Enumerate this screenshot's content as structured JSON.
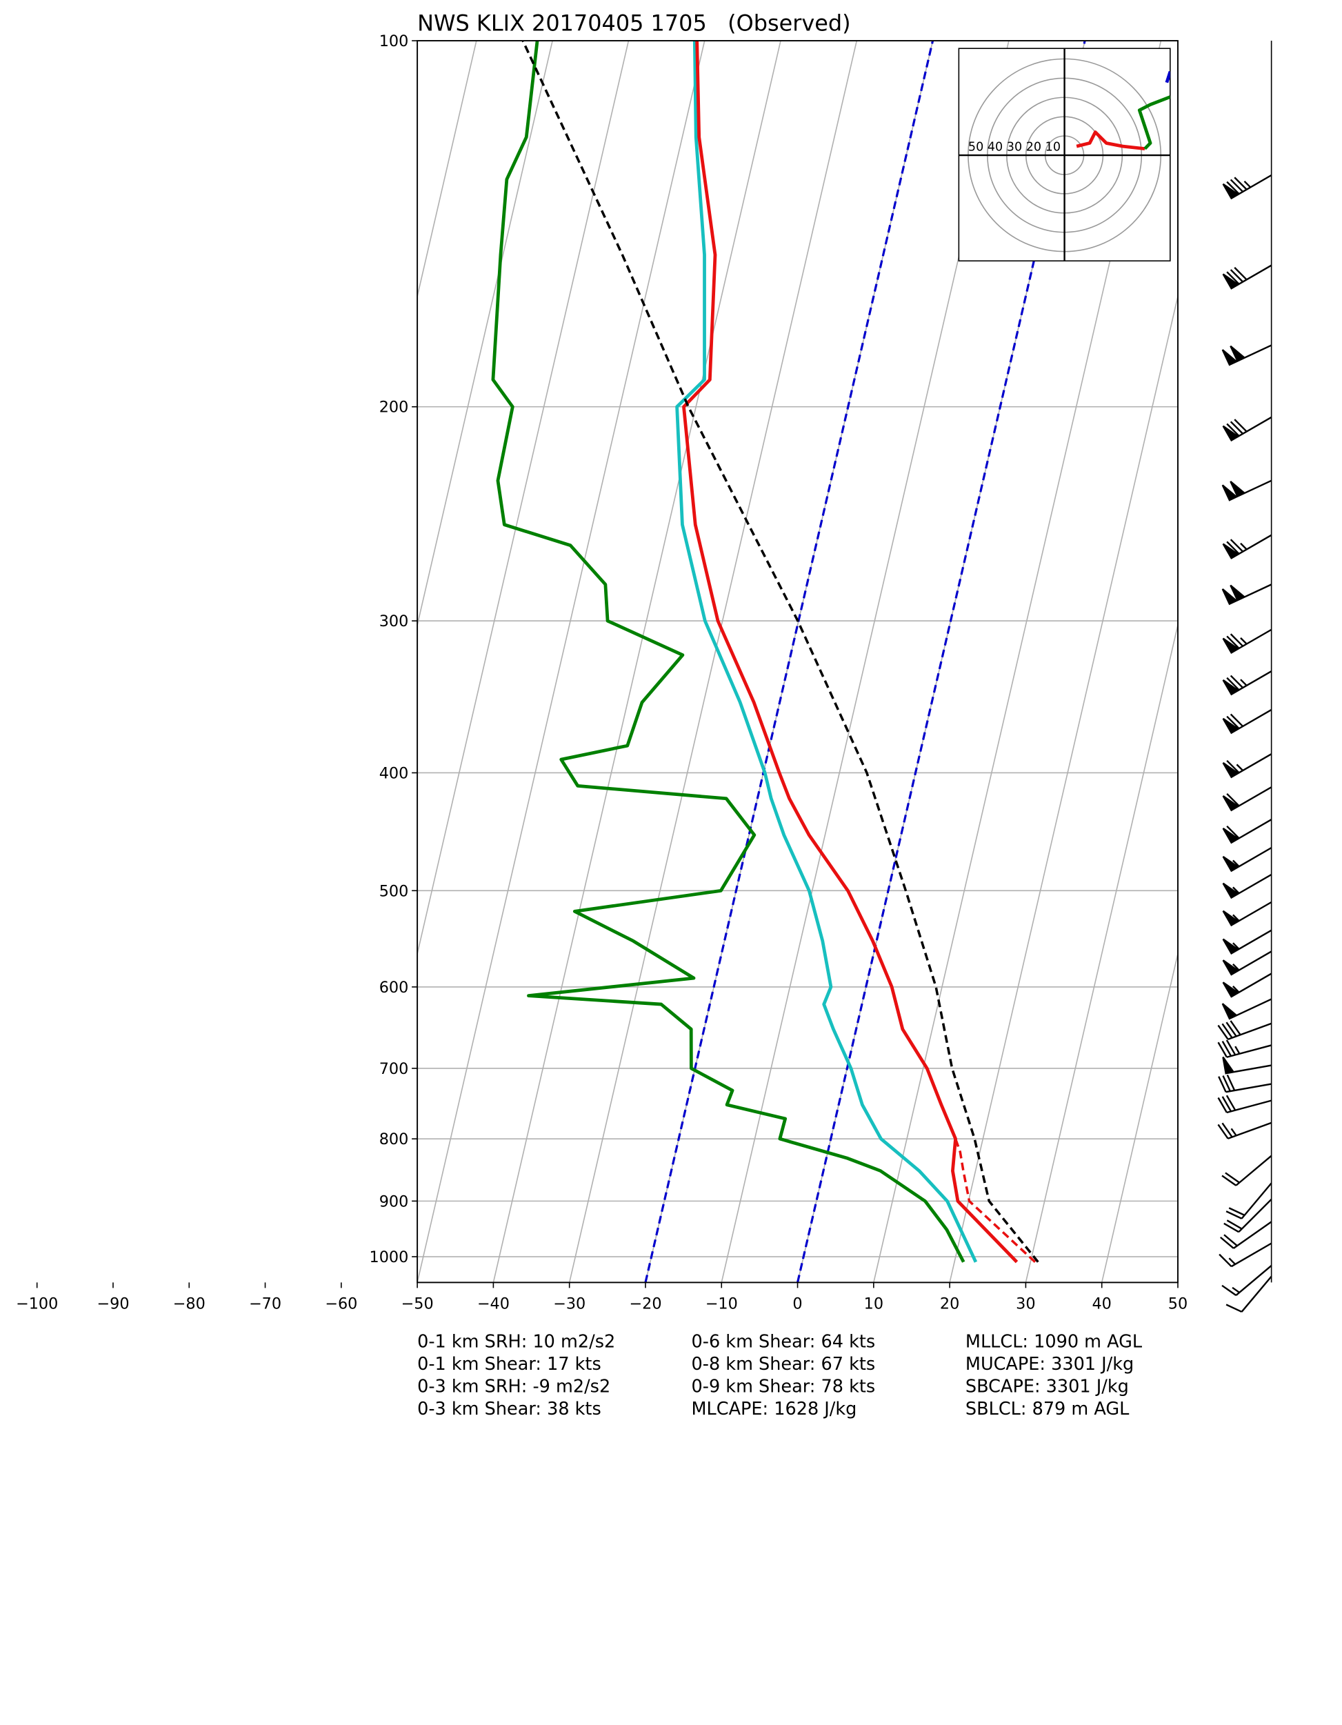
{
  "chart_data": {
    "type": "skewt",
    "title": "NWS KLIX 20170405 1705   (Observed)",
    "xlim": [
      -50,
      50
    ],
    "xticks": [
      {
        "value": -100,
        "label": "−100"
      },
      {
        "value": -90,
        "label": "−90"
      },
      {
        "value": -80,
        "label": "−80"
      },
      {
        "value": -70,
        "label": "−70"
      },
      {
        "value": -60,
        "label": "−60"
      },
      {
        "value": -50,
        "label": "−50"
      },
      {
        "value": -40,
        "label": "−40"
      },
      {
        "value": -30,
        "label": "−30"
      },
      {
        "value": -20,
        "label": "−20"
      },
      {
        "value": -10,
        "label": "−10"
      },
      0,
      10,
      20,
      30,
      40,
      50
    ],
    "ylim": [
      1050,
      100
    ],
    "yticks": [
      100,
      200,
      300,
      400,
      500,
      600,
      700,
      800,
      900,
      1000
    ],
    "log_y": true,
    "grid": true,
    "highlight_isotherms": {
      "values": [
        -20,
        0
      ],
      "color": "#0000cc"
    },
    "series": [
      {
        "color": "#008000",
        "style": "solid",
        "pressure": [
          1010,
          950,
          900,
          850,
          830,
          800,
          770,
          750,
          730,
          700,
          650,
          620,
          610,
          590,
          550,
          520,
          500,
          450,
          420,
          410,
          390,
          380,
          350,
          320,
          300,
          280,
          260,
          250,
          230,
          200,
          190,
          150,
          130,
          120,
          100
        ],
        "values": [
          21.2,
          18.0,
          14.3,
          7.5,
          2.8,
          -6.7,
          -6.6,
          -14.7,
          -14.4,
          -20.5,
          -21.7,
          -26.4,
          -44.1,
          -22.9,
          -32.0,
          -40.6,
          -22.0,
          -19.3,
          -24.1,
          -44.0,
          -47.0,
          -38.7,
          -38.1,
          -34.2,
          -45.1,
          -46.5,
          -52.3,
          -61.6,
          -63.8,
          -64.1,
          -67.5,
          -70.3,
          -71.8,
          -70.5,
          -72.0
        ]
      },
      {
        "color": "#17bfbf",
        "style": "solid",
        "pressure": [
          1010,
          900,
          850,
          800,
          750,
          700,
          650,
          620,
          600,
          550,
          500,
          450,
          420,
          400,
          350,
          300,
          250,
          200,
          190,
          150,
          120,
          100
        ],
        "values": [
          22.8,
          17.2,
          12.6,
          6.6,
          3.1,
          0.5,
          -3.0,
          -5.0,
          -4.6,
          -7.1,
          -10.4,
          -15.4,
          -18.2,
          -19.8,
          -25.2,
          -32.3,
          -38.2,
          -42.5,
          -39.7,
          -43.5,
          -48.2,
          -51.3
        ]
      },
      {
        "color": "#e81010",
        "style": "solid",
        "pressure": [
          1010,
          900,
          850,
          800,
          750,
          700,
          650,
          600,
          550,
          500,
          450,
          420,
          400,
          350,
          300,
          250,
          200,
          190,
          150,
          120,
          100
        ],
        "values": [
          28.2,
          18.6,
          17.0,
          16.4,
          13.5,
          10.5,
          6.1,
          3.4,
          -0.5,
          -5.3,
          -12.1,
          -15.8,
          -17.9,
          -23.4,
          -30.6,
          -36.5,
          -41.6,
          -39.0,
          -42.1,
          -47.8,
          -51.0
        ]
      },
      {
        "color": "#e81010",
        "style": "dashed",
        "pressure": [
          1010,
          900,
          850,
          820,
          800
        ],
        "values": [
          30.6,
          20.1,
          18.4,
          17.4,
          16.4
        ]
      },
      {
        "color": "#000000",
        "style": "dashed",
        "pressure": [
          1010,
          900,
          800,
          700,
          600,
          500,
          400,
          300,
          250,
          200,
          150,
          100
        ],
        "values": [
          31.0,
          22.7,
          18.9,
          13.8,
          9.2,
          2.3,
          -6.4,
          -20.1,
          -29.5,
          -41.0,
          -54.3,
          -73.9
        ]
      }
    ],
    "winds": {
      "pressure": [
        129,
        153,
        178,
        204,
        230,
        255,
        280,
        305,
        330,
        355,
        386,
        411,
        437,
        461,
        485,
        511,
        539,
        561,
        585,
        614,
        643,
        670,
        696,
        721,
        744,
        776,
        826,
        870,
        897,
        936,
        975,
        1017,
        1038
      ],
      "speed": [
        85,
        80,
        100,
        80,
        100,
        75,
        100,
        75,
        75,
        70,
        65,
        60,
        60,
        55,
        55,
        55,
        55,
        55,
        55,
        50,
        40,
        35,
        50,
        30,
        30,
        25,
        20,
        20,
        20,
        20,
        15,
        15,
        10
      ],
      "direction": [
        240,
        240,
        245,
        240,
        245,
        240,
        245,
        240,
        240,
        240,
        240,
        240,
        240,
        240,
        240,
        240,
        240,
        240,
        240,
        245,
        250,
        255,
        260,
        260,
        255,
        250,
        230,
        220,
        225,
        235,
        240,
        230,
        220
      ]
    },
    "hodograph": {
      "ring_labels": [
        50,
        40,
        30,
        20,
        10
      ],
      "series": [
        {
          "color": "#e81010",
          "u": [
            6.3,
            13.1,
            16.0,
            21.7,
            30.3,
            41.7
          ],
          "v": [
            4.6,
            6.3,
            12.0,
            6.3,
            4.6,
            3.4
          ]
        },
        {
          "color": "#008000",
          "u": [
            41.7,
            44.6,
            41.7,
            38.9,
            44.6,
            54.9
          ],
          "v": [
            3.4,
            6.3,
            14.9,
            23.4,
            26.3,
            30.3
          ]
        },
        {
          "color": "#0000cc",
          "u": [
            54.9,
            53.1
          ],
          "v": [
            43.4,
            37.7
          ]
        }
      ]
    },
    "stats": [
      [
        "0-1 km SRH: 10 m2/s2",
        "0-1 km Shear: 17 kts",
        "0-3 km SRH: -9 m2/s2",
        "0-3 km Shear: 38 kts"
      ],
      [
        "0-6 km Shear: 64 kts",
        "0-8 km Shear: 67 kts",
        "0-9 km Shear: 78 kts",
        "MLCAPE: 1628 J/kg"
      ],
      [
        "MLLCL: 1090 m AGL",
        "MUCAPE: 3301 J/kg",
        "SBCAPE: 3301 J/kg",
        "SBLCL: 879 m AGL"
      ]
    ]
  }
}
